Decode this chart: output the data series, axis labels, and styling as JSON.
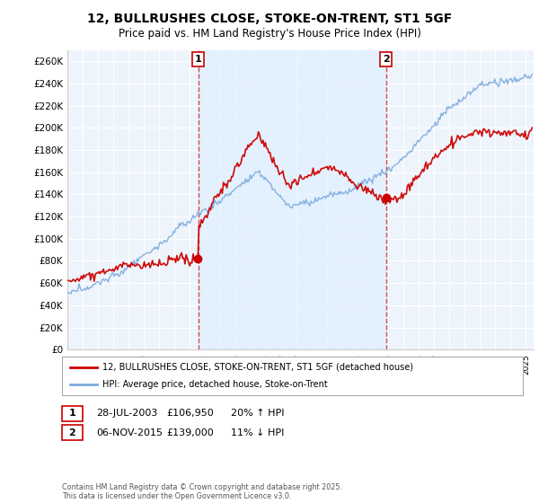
{
  "title": "12, BULLRUSHES CLOSE, STOKE-ON-TRENT, ST1 5GF",
  "subtitle": "Price paid vs. HM Land Registry's House Price Index (HPI)",
  "ylabel_ticks": [
    "£0",
    "£20K",
    "£40K",
    "£60K",
    "£80K",
    "£100K",
    "£120K",
    "£140K",
    "£160K",
    "£180K",
    "£200K",
    "£220K",
    "£240K",
    "£260K"
  ],
  "ylim": [
    0,
    270000
  ],
  "ytick_vals": [
    0,
    20000,
    40000,
    60000,
    80000,
    100000,
    120000,
    140000,
    160000,
    180000,
    200000,
    220000,
    240000,
    260000
  ],
  "xmin": 1995.0,
  "xmax": 2025.5,
  "vline1_x": 2003.57,
  "vline2_x": 2015.85,
  "vline1_label": "1",
  "vline2_label": "2",
  "sale1_x": 2003.57,
  "sale1_y": 106950,
  "sale2_x": 2015.85,
  "sale2_y": 139000,
  "sale1_date": "28-JUL-2003",
  "sale1_price": "£106,950",
  "sale1_hpi": "20% ↑ HPI",
  "sale2_date": "06-NOV-2015",
  "sale2_price": "£139,000",
  "sale2_hpi": "11% ↓ HPI",
  "legend_line1": "12, BULLRUSHES CLOSE, STOKE-ON-TRENT, ST1 5GF (detached house)",
  "legend_line2": "HPI: Average price, detached house, Stoke-on-Trent",
  "footnote": "Contains HM Land Registry data © Crown copyright and database right 2025.\nThis data is licensed under the Open Government Licence v3.0.",
  "line_color_red": "#cc0000",
  "line_color_blue": "#7aaadd",
  "shade_color": "#ddeeff",
  "vline_color": "#cc0000",
  "plot_bg_color": "#eef4fb",
  "grid_color": "#ffffff"
}
